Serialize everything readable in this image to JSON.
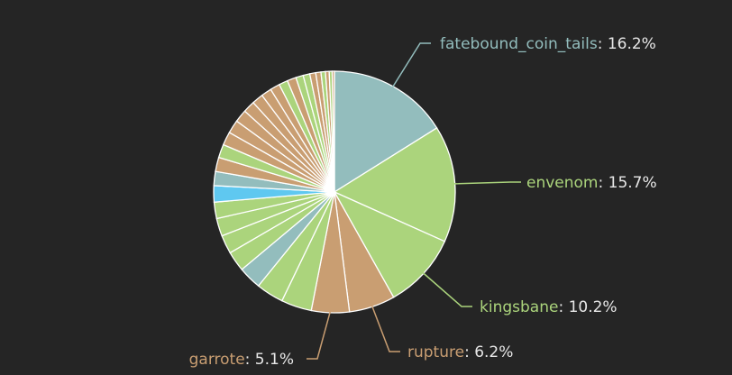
{
  "chart_data": {
    "type": "pie",
    "title": "",
    "start_angle_deg": 0,
    "direction": "clockwise",
    "slices": [
      {
        "name": "fatebound_coin_tails",
        "value": 16.2,
        "color": "#93bdbd",
        "label": "fatebound_coin_tails",
        "pct_text": "16.2%"
      },
      {
        "name": "envenom",
        "value": 15.7,
        "color": "#abd47c",
        "label": "envenom",
        "pct_text": "15.7%"
      },
      {
        "name": "kingsbane",
        "value": 10.2,
        "color": "#abd47c",
        "label": "kingsbane",
        "pct_text": "10.2%"
      },
      {
        "name": "rupture",
        "value": 6.2,
        "color": "#c99e72",
        "label": "rupture",
        "pct_text": "6.2%"
      },
      {
        "name": "garrote",
        "value": 5.1,
        "color": "#c99e72",
        "label": "garrote",
        "pct_text": "5.1%"
      },
      {
        "name": "",
        "value": 4.1,
        "color": "#abd47c"
      },
      {
        "name": "",
        "value": 3.7,
        "color": "#abd47c"
      },
      {
        "name": "",
        "value": 3.1,
        "color": "#93bdbd"
      },
      {
        "name": "",
        "value": 2.7,
        "color": "#abd47c"
      },
      {
        "name": "",
        "value": 2.5,
        "color": "#abd47c"
      },
      {
        "name": "",
        "value": 2.4,
        "color": "#abd47c"
      },
      {
        "name": "",
        "value": 2.2,
        "color": "#abd47c"
      },
      {
        "name": "",
        "value": 2.2,
        "color": "#5fc8f0"
      },
      {
        "name": "",
        "value": 1.9,
        "color": "#93bdbd"
      },
      {
        "name": "",
        "value": 1.9,
        "color": "#c99e72"
      },
      {
        "name": "",
        "value": 1.8,
        "color": "#abd47c"
      },
      {
        "name": "",
        "value": 1.8,
        "color": "#c99e72"
      },
      {
        "name": "",
        "value": 1.8,
        "color": "#c99e72"
      },
      {
        "name": "",
        "value": 1.7,
        "color": "#c99e72"
      },
      {
        "name": "",
        "value": 1.6,
        "color": "#c99e72"
      },
      {
        "name": "",
        "value": 1.5,
        "color": "#c99e72"
      },
      {
        "name": "",
        "value": 1.4,
        "color": "#c99e72"
      },
      {
        "name": "",
        "value": 1.3,
        "color": "#c99e72"
      },
      {
        "name": "",
        "value": 1.2,
        "color": "#abd47c"
      },
      {
        "name": "",
        "value": 1.2,
        "color": "#c99e72"
      },
      {
        "name": "",
        "value": 1.0,
        "color": "#abd47c"
      },
      {
        "name": "",
        "value": 0.9,
        "color": "#abd47c"
      },
      {
        "name": "",
        "value": 0.8,
        "color": "#c99e72"
      },
      {
        "name": "",
        "value": 0.7,
        "color": "#c99e72"
      },
      {
        "name": "",
        "value": 0.6,
        "color": "#abd47c"
      },
      {
        "name": "",
        "value": 0.5,
        "color": "#c99e72"
      },
      {
        "name": "",
        "value": 0.4,
        "color": "#abd47c"
      },
      {
        "name": "",
        "value": 0.3,
        "color": "#c99e72"
      }
    ]
  }
}
